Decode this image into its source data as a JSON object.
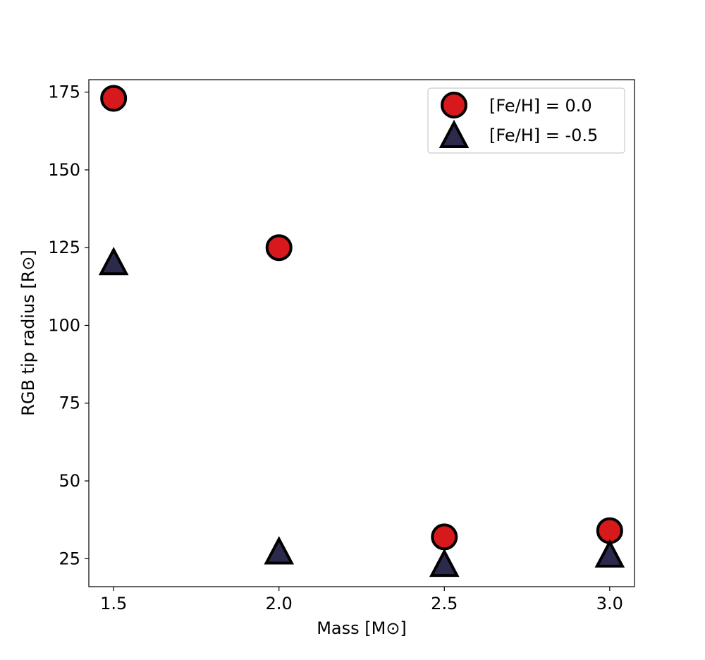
{
  "chart_data": {
    "type": "scatter",
    "xlabel": "Mass [M⊙]",
    "ylabel": "RGB tip radius [R⊙]",
    "xlim": [
      1.425,
      3.075
    ],
    "ylim": [
      16,
      179
    ],
    "x_ticks": [
      1.5,
      2.0,
      2.5,
      3.0
    ],
    "x_tick_labels": [
      "1.5",
      "2.0",
      "2.5",
      "3.0"
    ],
    "y_ticks": [
      25,
      50,
      75,
      100,
      125,
      150,
      175
    ],
    "y_tick_labels": [
      "25",
      "50",
      "75",
      "100",
      "125",
      "150",
      "175"
    ],
    "grid": false,
    "legend_position": "top-right",
    "series": [
      {
        "name": "[Fe/H] = 0.0",
        "marker": "circle",
        "color": "#d7191c",
        "edge_color": "#000000",
        "x": [
          1.5,
          2.0,
          2.5,
          3.0
        ],
        "y": [
          173,
          125,
          32,
          34
        ]
      },
      {
        "name": "[Fe/H] = -0.5",
        "marker": "triangle",
        "color": "#2b2a4c",
        "edge_color": "#000000",
        "x": [
          1.5,
          2.0,
          2.5,
          3.0
        ],
        "y": [
          120,
          27,
          23,
          26
        ]
      }
    ]
  }
}
